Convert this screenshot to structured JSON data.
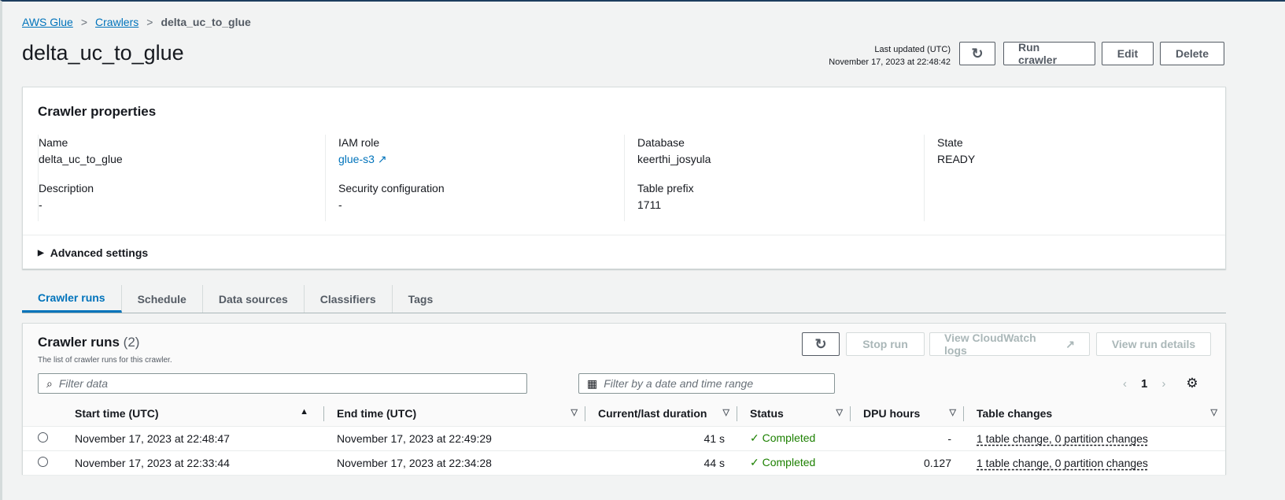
{
  "breadcrumb": [
    "AWS Glue",
    "Crawlers",
    "delta_uc_to_glue"
  ],
  "title": "delta_uc_to_glue",
  "last_updated_label": "Last updated (UTC)",
  "last_updated": "November 17, 2023 at 22:48:42",
  "actions": {
    "run": "Run crawler",
    "edit": "Edit",
    "delete": "Delete"
  },
  "props": {
    "heading": "Crawler properties",
    "fields": [
      {
        "label": "Name",
        "value": "delta_uc_to_glue"
      },
      {
        "label": "IAM role",
        "value": "glue-s3"
      },
      {
        "label": "Database",
        "value": "keerthi_josyula"
      },
      {
        "label": "State",
        "value": "READY"
      },
      {
        "label": "Description",
        "value": "-"
      },
      {
        "label": "Security configuration",
        "value": "-"
      },
      {
        "label": "Table prefix",
        "value": "1711"
      }
    ],
    "advanced": "Advanced settings"
  },
  "tabs": [
    "Crawler runs",
    "Schedule",
    "Data sources",
    "Classifiers",
    "Tags"
  ],
  "runs": {
    "heading": "Crawler runs",
    "count": "(2)",
    "desc": "The list of crawler runs for this crawler.",
    "stop": "Stop run",
    "logs": "View CloudWatch logs",
    "details": "View run details",
    "filter_placeholder": "Filter data",
    "date_placeholder": "Filter by a date and time range",
    "page": "1",
    "columns": [
      "Start time (UTC)",
      "End time (UTC)",
      "Current/last duration",
      "Status",
      "DPU hours",
      "Table changes"
    ],
    "rows": [
      [
        "November 17, 2023 at 22:48:47",
        "November 17, 2023 at 22:49:29",
        "41 s",
        "Completed",
        "-",
        "1 table change, 0 partition changes"
      ],
      [
        "November 17, 2023 at 22:33:44",
        "November 17, 2023 at 22:34:28",
        "44 s",
        "Completed",
        "0.127",
        "1 table change, 0 partition changes"
      ]
    ]
  }
}
